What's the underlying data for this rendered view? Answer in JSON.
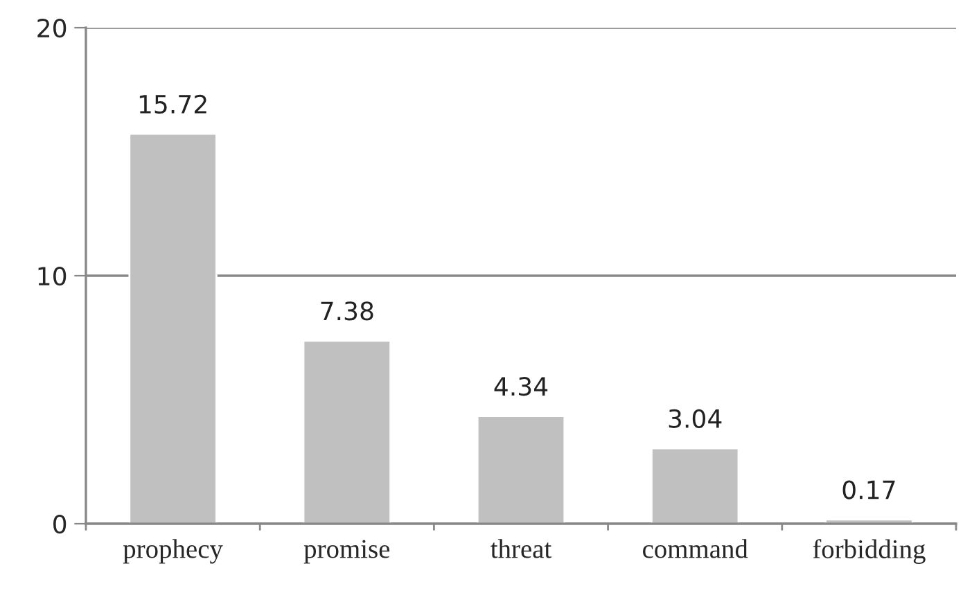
{
  "chart_data": {
    "type": "bar",
    "categories": [
      "prophecy",
      "promise",
      "threat",
      "command",
      "forbidding"
    ],
    "values": [
      15.72,
      7.38,
      4.34,
      3.04,
      0.17
    ],
    "color": "#c0c0c0",
    "ylim": [
      0,
      20
    ],
    "yticks": [
      0,
      10,
      20
    ],
    "grid": "y",
    "data_labels": true,
    "legend": false
  }
}
